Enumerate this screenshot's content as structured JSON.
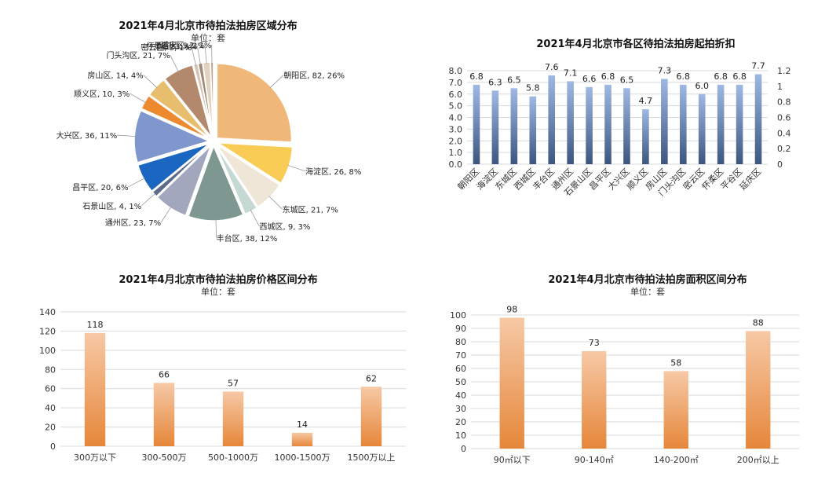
{
  "chart_data": [
    {
      "id": "district",
      "type": "pie",
      "title": "2021年4月北京市待拍法拍房区域分布",
      "subtitle": "单位：套",
      "slices": [
        {
          "label": "朝阳区, 82, 26%",
          "value": 82,
          "color": "#f0b878"
        },
        {
          "label": "海淀区, 26, 8%",
          "value": 26,
          "color": "#f8cc55"
        },
        {
          "label": "东城区, 21, 7%",
          "value": 21,
          "color": "#f0e6d8"
        },
        {
          "label": "西城区, 9, 3%",
          "value": 9,
          "color": "#c5d8d2"
        },
        {
          "label": "丰台区, 38, 12%",
          "value": 38,
          "color": "#7e9790"
        },
        {
          "label": "通州区, 23, 7%",
          "value": 23,
          "color": "#a2a7bd"
        },
        {
          "label": "石景山区, 4, 1%",
          "value": 4,
          "color": "#5d6a88"
        },
        {
          "label": "昌平区, 20, 6%",
          "value": 20,
          "color": "#1a66c0"
        },
        {
          "label": "大兴区, 36, 11%",
          "value": 36,
          "color": "#7f97cc"
        },
        {
          "label": "顺义区, 10, 3%",
          "value": 10,
          "color": "#ed8a30"
        },
        {
          "label": "房山区, 14, 4%",
          "value": 14,
          "color": "#e7be6e"
        },
        {
          "label": "门头沟区, 21, 7%",
          "value": 21,
          "color": "#b3896d"
        },
        {
          "label": "密云区, 3, 1%",
          "value": 3,
          "color": "#d7c2b0"
        },
        {
          "label": "怀柔区, 3, 1%",
          "value": 3,
          "color": "#9e8a7a"
        },
        {
          "label": "平谷区, 5, 2%",
          "value": 5,
          "color": "#e3d2bf"
        },
        {
          "label": "延庆区, 2, 1%",
          "value": 2,
          "color": "#c4a98f"
        }
      ]
    },
    {
      "id": "discount",
      "type": "bar",
      "title": "2021年4月北京市各区待拍法拍房起拍折扣",
      "categories": [
        "朝阳区",
        "海淀区",
        "东城区",
        "西城区",
        "丰台区",
        "通州区",
        "石景山区",
        "昌平区",
        "大兴区",
        "顺义区",
        "房山区",
        "门头沟区",
        "密云区",
        "怀柔区",
        "平谷区",
        "延庆区"
      ],
      "values": [
        6.8,
        6.3,
        6.5,
        5.8,
        7.6,
        7.1,
        6.6,
        6.8,
        6.5,
        4.7,
        7.3,
        6.8,
        6.0,
        6.8,
        6.8,
        7.7
      ],
      "value_labels": [
        "6.8",
        "6.3",
        "6.5",
        "5.8",
        "7.6",
        "7.1",
        "6.6",
        "6.8",
        "6.5",
        "4.7",
        "7.3",
        "6.8",
        "6.0",
        "6.8",
        "6.8",
        "7.7"
      ],
      "ylim": [
        0,
        8
      ],
      "yticks": [
        "0.0",
        "1.0",
        "2.0",
        "3.0",
        "4.0",
        "5.0",
        "6.0",
        "7.0",
        "8.0"
      ],
      "y2lim": [
        0,
        1.2
      ],
      "y2ticks": [
        "0",
        "0.2",
        "0.4",
        "0.6",
        "0.8",
        "1",
        "1.2"
      ],
      "color_top": "#9fb8e4",
      "color_bottom": "#3d5680"
    },
    {
      "id": "price",
      "type": "bar",
      "title": "2021年4月北京市待拍法拍房价格区间分布",
      "subtitle": "单位：套",
      "categories": [
        "300万以下",
        "300-500万",
        "500-1000万",
        "1000-1500万",
        "1500万以上"
      ],
      "values": [
        118,
        66,
        57,
        14,
        62
      ],
      "ylim": [
        0,
        140
      ],
      "yticks": [
        "0",
        "20",
        "40",
        "60",
        "80",
        "100",
        "120",
        "140"
      ],
      "color_top": "#f6c9a6",
      "color_bottom": "#e6873a"
    },
    {
      "id": "area",
      "type": "bar",
      "title": "2021年4月北京市待拍法拍房面积区间分布",
      "subtitle": "单位：套",
      "categories": [
        "90㎡以下",
        "90-140㎡",
        "140-200㎡",
        "200㎡以上"
      ],
      "values": [
        98,
        73,
        58,
        88
      ],
      "ylim": [
        0,
        100
      ],
      "yticks": [
        "0",
        "10",
        "20",
        "30",
        "40",
        "50",
        "60",
        "70",
        "80",
        "90",
        "100"
      ],
      "color_top": "#f6c9a6",
      "color_bottom": "#e6873a"
    }
  ]
}
